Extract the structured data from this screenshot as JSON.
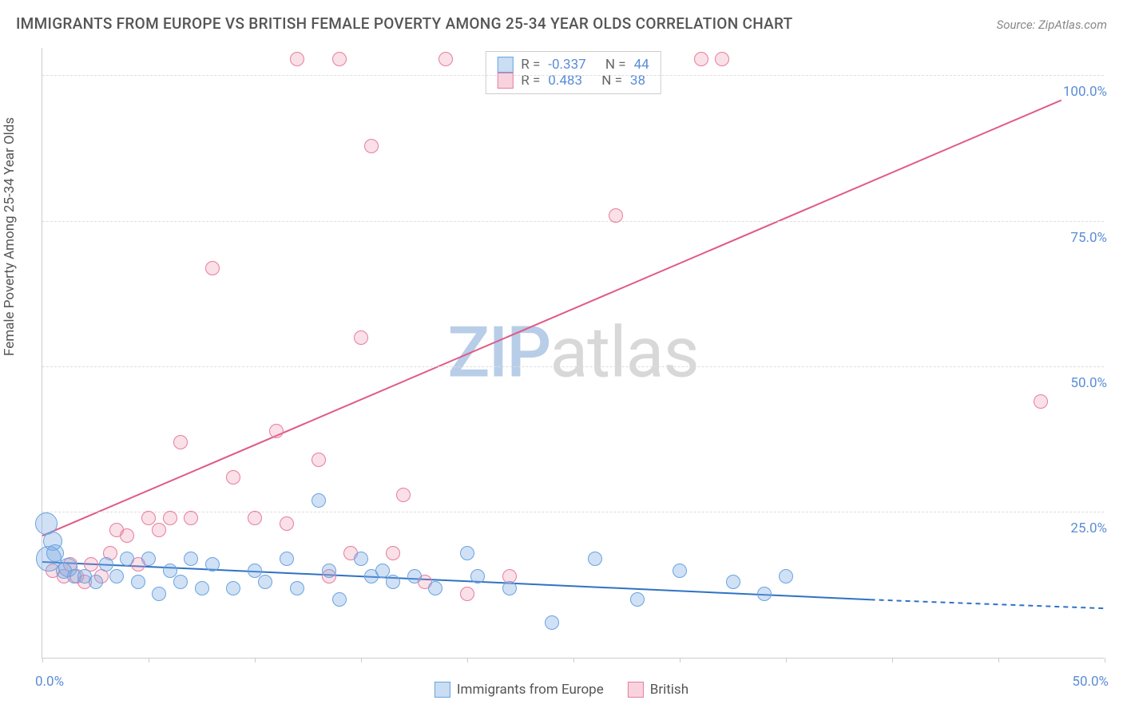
{
  "title": "IMMIGRANTS FROM EUROPE VS BRITISH FEMALE POVERTY AMONG 25-34 YEAR OLDS CORRELATION CHART",
  "source": "Source: ZipAtlas.com",
  "y_axis_label": "Female Poverty Among 25-34 Year Olds",
  "watermark": {
    "part1": "ZIP",
    "part2": "atlas"
  },
  "axes": {
    "x_min_label": "0.0%",
    "x_max_label": "50.0%",
    "x_min": 0,
    "x_max": 50,
    "y_min": 0,
    "y_max": 105,
    "y_ticks": [
      {
        "value": 25,
        "label": "25.0%"
      },
      {
        "value": 50,
        "label": "50.0%"
      },
      {
        "value": 75,
        "label": "75.0%"
      },
      {
        "value": 100,
        "label": "100.0%"
      }
    ],
    "x_tick_positions": [
      0,
      5,
      10,
      15,
      20,
      25,
      30,
      35,
      40,
      45,
      50
    ]
  },
  "colors": {
    "blue_fill": "rgba(120,170,225,0.35)",
    "blue_stroke": "#6aa3e0",
    "pink_fill": "rgba(235,130,160,0.25)",
    "pink_stroke": "#e77ca0",
    "blue_line": "#2f72c4",
    "pink_line": "#e05a86",
    "grid": "#dddddd",
    "axis_text": "#5b8dd6"
  },
  "stats_legend": {
    "rows": [
      {
        "color": "blue",
        "r_label": "R =",
        "r": "-0.337",
        "n_label": "N =",
        "n": "44"
      },
      {
        "color": "pink",
        "r_label": "R =",
        "r": "0.483",
        "n_label": "N =",
        "n": "38"
      }
    ]
  },
  "bottom_legend": {
    "items": [
      {
        "color": "blue",
        "label": "Immigrants from Europe"
      },
      {
        "color": "pink",
        "label": "British"
      }
    ]
  },
  "trend_lines": {
    "blue": {
      "x1": 0,
      "y1": 16.5,
      "x2": 39,
      "y2": 10,
      "dash_x2": 50,
      "dash_y2": 8.5
    },
    "pink": {
      "x1": 0,
      "y1": 21,
      "x2": 48,
      "y2": 96
    }
  },
  "series": {
    "blue": [
      {
        "x": 0.2,
        "y": 23,
        "r": 14
      },
      {
        "x": 0.3,
        "y": 17,
        "r": 16
      },
      {
        "x": 0.5,
        "y": 20,
        "r": 12
      },
      {
        "x": 0.6,
        "y": 18,
        "r": 11
      },
      {
        "x": 1.0,
        "y": 15,
        "r": 10
      },
      {
        "x": 1.2,
        "y": 15.5,
        "r": 12
      },
      {
        "x": 1.5,
        "y": 14,
        "r": 9
      },
      {
        "x": 2.0,
        "y": 14,
        "r": 9
      },
      {
        "x": 2.5,
        "y": 13,
        "r": 9
      },
      {
        "x": 3.0,
        "y": 16,
        "r": 9
      },
      {
        "x": 3.5,
        "y": 14,
        "r": 9
      },
      {
        "x": 4.0,
        "y": 17,
        "r": 9
      },
      {
        "x": 4.5,
        "y": 13,
        "r": 9
      },
      {
        "x": 5.0,
        "y": 17,
        "r": 9
      },
      {
        "x": 5.5,
        "y": 11,
        "r": 9
      },
      {
        "x": 6.0,
        "y": 15,
        "r": 9
      },
      {
        "x": 6.5,
        "y": 13,
        "r": 9
      },
      {
        "x": 7.0,
        "y": 17,
        "r": 9
      },
      {
        "x": 7.5,
        "y": 12,
        "r": 9
      },
      {
        "x": 8.0,
        "y": 16,
        "r": 9
      },
      {
        "x": 9.0,
        "y": 12,
        "r": 9
      },
      {
        "x": 10.0,
        "y": 15,
        "r": 9
      },
      {
        "x": 10.5,
        "y": 13,
        "r": 9
      },
      {
        "x": 11.5,
        "y": 17,
        "r": 9
      },
      {
        "x": 12.0,
        "y": 12,
        "r": 9
      },
      {
        "x": 13.0,
        "y": 27,
        "r": 9
      },
      {
        "x": 13.5,
        "y": 15,
        "r": 9
      },
      {
        "x": 14.0,
        "y": 10,
        "r": 9
      },
      {
        "x": 15.0,
        "y": 17,
        "r": 9
      },
      {
        "x": 15.5,
        "y": 14,
        "r": 9
      },
      {
        "x": 16.0,
        "y": 15,
        "r": 9
      },
      {
        "x": 16.5,
        "y": 13,
        "r": 9
      },
      {
        "x": 17.5,
        "y": 14,
        "r": 9
      },
      {
        "x": 18.5,
        "y": 12,
        "r": 9
      },
      {
        "x": 20.0,
        "y": 18,
        "r": 9
      },
      {
        "x": 20.5,
        "y": 14,
        "r": 9
      },
      {
        "x": 22.0,
        "y": 12,
        "r": 9
      },
      {
        "x": 24.0,
        "y": 6,
        "r": 9
      },
      {
        "x": 26.0,
        "y": 17,
        "r": 9
      },
      {
        "x": 28.0,
        "y": 10,
        "r": 9
      },
      {
        "x": 30.0,
        "y": 15,
        "r": 9
      },
      {
        "x": 32.5,
        "y": 13,
        "r": 9
      },
      {
        "x": 35.0,
        "y": 14,
        "r": 9
      },
      {
        "x": 34.0,
        "y": 11,
        "r": 9
      }
    ],
    "pink": [
      {
        "x": 0.5,
        "y": 15,
        "r": 9
      },
      {
        "x": 1.0,
        "y": 14,
        "r": 9
      },
      {
        "x": 1.3,
        "y": 16,
        "r": 9
      },
      {
        "x": 1.6,
        "y": 14,
        "r": 9
      },
      {
        "x": 2.0,
        "y": 13,
        "r": 9
      },
      {
        "x": 2.3,
        "y": 16,
        "r": 9
      },
      {
        "x": 2.8,
        "y": 14,
        "r": 9
      },
      {
        "x": 3.2,
        "y": 18,
        "r": 9
      },
      {
        "x": 3.5,
        "y": 22,
        "r": 9
      },
      {
        "x": 4.0,
        "y": 21,
        "r": 9
      },
      {
        "x": 4.5,
        "y": 16,
        "r": 9
      },
      {
        "x": 5.0,
        "y": 24,
        "r": 9
      },
      {
        "x": 5.5,
        "y": 22,
        "r": 9
      },
      {
        "x": 6.0,
        "y": 24,
        "r": 9
      },
      {
        "x": 6.5,
        "y": 37,
        "r": 9
      },
      {
        "x": 7.0,
        "y": 24,
        "r": 9
      },
      {
        "x": 8.0,
        "y": 67,
        "r": 9
      },
      {
        "x": 9.0,
        "y": 31,
        "r": 9
      },
      {
        "x": 10.0,
        "y": 24,
        "r": 9
      },
      {
        "x": 11.0,
        "y": 39,
        "r": 9
      },
      {
        "x": 11.5,
        "y": 23,
        "r": 9
      },
      {
        "x": 12.0,
        "y": 103,
        "r": 9
      },
      {
        "x": 13.0,
        "y": 34,
        "r": 9
      },
      {
        "x": 14.0,
        "y": 103,
        "r": 9
      },
      {
        "x": 14.5,
        "y": 18,
        "r": 9
      },
      {
        "x": 15.0,
        "y": 55,
        "r": 9
      },
      {
        "x": 15.5,
        "y": 88,
        "r": 9
      },
      {
        "x": 16.5,
        "y": 18,
        "r": 9
      },
      {
        "x": 17.0,
        "y": 28,
        "r": 9
      },
      {
        "x": 18.0,
        "y": 13,
        "r": 9
      },
      {
        "x": 19.0,
        "y": 103,
        "r": 9
      },
      {
        "x": 20.0,
        "y": 11,
        "r": 9
      },
      {
        "x": 22.0,
        "y": 14,
        "r": 9
      },
      {
        "x": 27.0,
        "y": 76,
        "r": 9
      },
      {
        "x": 31.0,
        "y": 103,
        "r": 9
      },
      {
        "x": 32.0,
        "y": 103,
        "r": 9
      },
      {
        "x": 47.0,
        "y": 44,
        "r": 9
      },
      {
        "x": 13.5,
        "y": 14,
        "r": 9
      }
    ]
  }
}
